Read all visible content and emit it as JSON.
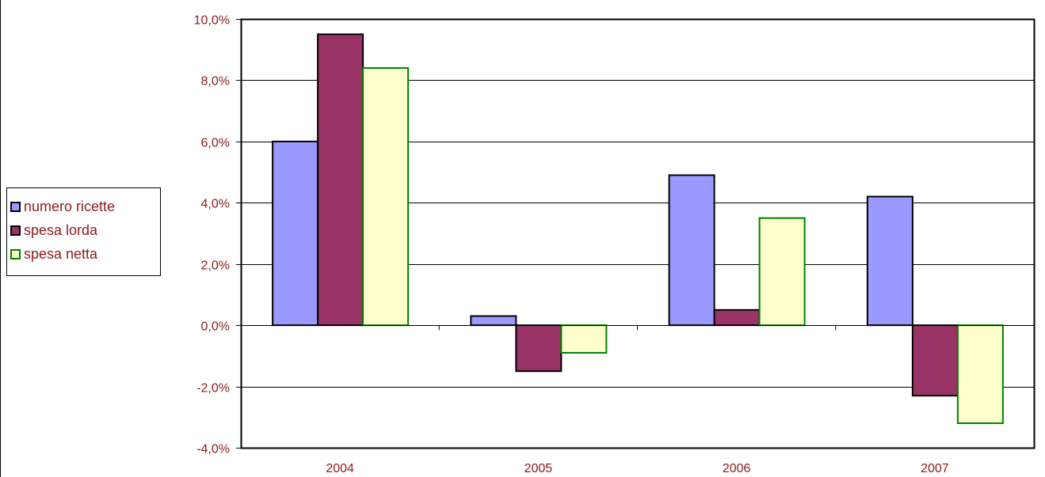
{
  "chart_data": {
    "type": "bar",
    "title": "",
    "xlabel": "",
    "ylabel": "",
    "categories": [
      "2004",
      "2005",
      "2006",
      "2007"
    ],
    "series": [
      {
        "name": "numero ricette",
        "values": [
          6.0,
          0.3,
          4.9,
          4.2
        ],
        "color": "#9999ff",
        "stroke": "#000000"
      },
      {
        "name": "spesa lorda",
        "values": [
          9.5,
          -1.5,
          0.5,
          -2.3
        ],
        "color": "#993366",
        "stroke": "#000000"
      },
      {
        "name": "spesa netta",
        "values": [
          8.4,
          -0.9,
          3.5,
          -3.2
        ],
        "color": "#ffffcc",
        "stroke": "#008000"
      }
    ],
    "ylim": [
      -4,
      10
    ],
    "yticks": [
      "-4,0%",
      "-2,0%",
      "0,0%",
      "2,0%",
      "4,0%",
      "6,0%",
      "8,0%",
      "10,0%"
    ],
    "grid": true,
    "legend_position": "left"
  }
}
